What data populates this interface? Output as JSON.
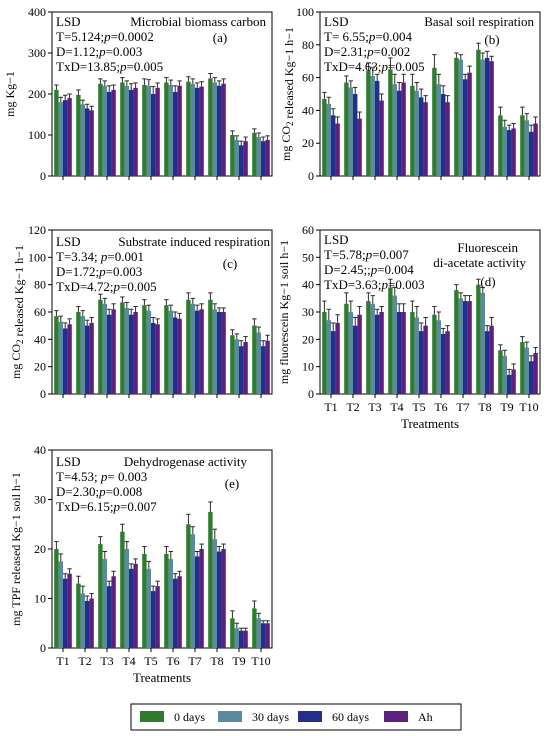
{
  "colors": {
    "0 days": "#2e7d2e",
    "30 days": "#5a8aa0",
    "60 days": "#232f8c",
    "Ah": "#5e1e82"
  },
  "legend": [
    "0 days",
    "30 days",
    "60 days",
    "Ah"
  ],
  "chart_data": [
    {
      "type": "bar",
      "panel": "a",
      "title": "Microbial biomass carbon",
      "panel_label": "(a)",
      "stats": [
        "LSD",
        "T=5.124;p=0.0002",
        "D=1.12;p=0.003",
        "TxD=13.85;p=0.005"
      ],
      "ylabel": "mg Kg−1",
      "xlabel": "",
      "ylim": [
        0,
        400
      ],
      "yticks": [
        0,
        100,
        200,
        300,
        400
      ],
      "categories": [
        "T1",
        "T2",
        "T3",
        "T4",
        "T5",
        "T6",
        "T7",
        "T8",
        "T9",
        "T10"
      ],
      "show_x_ticklabels": false,
      "series": [
        {
          "name": "0 days",
          "values": [
            210,
            198,
            225,
            228,
            222,
            228,
            230,
            238,
            100,
            105
          ],
          "errors": [
            12,
            12,
            12,
            12,
            15,
            12,
            12,
            12,
            10,
            10
          ]
        },
        {
          "name": "30 days",
          "values": [
            180,
            175,
            220,
            220,
            220,
            222,
            225,
            228,
            88,
            95
          ],
          "errors": [
            12,
            10,
            12,
            12,
            15,
            12,
            12,
            12,
            10,
            10
          ]
        },
        {
          "name": "60 days",
          "values": [
            185,
            165,
            205,
            210,
            200,
            205,
            215,
            220,
            75,
            85
          ],
          "errors": [
            12,
            10,
            15,
            15,
            18,
            15,
            12,
            12,
            10,
            10
          ]
        },
        {
          "name": "Ah",
          "values": [
            190,
            160,
            210,
            215,
            215,
            220,
            218,
            225,
            85,
            88
          ],
          "errors": [
            10,
            10,
            12,
            12,
            12,
            12,
            12,
            12,
            10,
            10
          ]
        }
      ]
    },
    {
      "type": "bar",
      "panel": "b",
      "title": "Basal soil respiration",
      "panel_label": "(b)",
      "stats": [
        "LSD",
        "T= 6.55;p=0.004",
        "D=2.31;p=0.002",
        "TxD=4.63;p=0.005"
      ],
      "ylabel": "mg CO2 released Kg−1 h−1",
      "xlabel": "",
      "ylim": [
        0,
        100
      ],
      "yticks": [
        0,
        20,
        40,
        60,
        80,
        100
      ],
      "categories": [
        "T1",
        "T2",
        "T3",
        "T4",
        "T5",
        "T6",
        "T7",
        "T8",
        "T9",
        "T10"
      ],
      "show_x_ticklabels": false,
      "series": [
        {
          "name": "0 days",
          "values": [
            47,
            57,
            64,
            65,
            55,
            66,
            72,
            77,
            37,
            37
          ],
          "errors": [
            4,
            4,
            5,
            7,
            7,
            8,
            3,
            4,
            5,
            5
          ]
        },
        {
          "name": "30 days",
          "values": [
            44,
            54,
            61,
            56,
            52,
            56,
            71,
            71,
            30,
            34
          ],
          "errors": [
            4,
            4,
            5,
            6,
            5,
            6,
            3,
            4,
            4,
            4
          ]
        },
        {
          "name": "60 days",
          "values": [
            37,
            50,
            58,
            52,
            48,
            50,
            59,
            72,
            28,
            27
          ],
          "errors": [
            4,
            4,
            4,
            5,
            5,
            5,
            3,
            4,
            3,
            4
          ]
        },
        {
          "name": "Ah",
          "values": [
            32,
            35,
            46,
            57,
            45,
            45,
            63,
            70,
            29,
            32
          ],
          "errors": [
            4,
            4,
            4,
            5,
            4,
            4,
            4,
            3,
            3,
            4
          ]
        }
      ]
    },
    {
      "type": "bar",
      "panel": "c",
      "title": "Substrate induced respiration",
      "panel_label": "(c)",
      "stats": [
        "LSD",
        "T=3.34; p=0.001",
        "D=1.72;p=0.003",
        "TxD=4.72;p=0.005"
      ],
      "ylabel": "mg CO2 released Kg−1 h−1",
      "xlabel": "",
      "ylim": [
        0,
        120
      ],
      "yticks": [
        0,
        20,
        40,
        60,
        80,
        100,
        120
      ],
      "categories": [
        "T1",
        "T2",
        "T3",
        "T4",
        "T5",
        "T6",
        "T7",
        "T8",
        "T9",
        "T10"
      ],
      "show_x_ticklabels": false,
      "series": [
        {
          "name": "0 days",
          "values": [
            57,
            60,
            69,
            67,
            65,
            65,
            69,
            69,
            43,
            50
          ],
          "errors": [
            4,
            4,
            4,
            4,
            4,
            4,
            5,
            5,
            4,
            5
          ]
        },
        {
          "name": "30 days",
          "values": [
            53,
            57,
            66,
            63,
            61,
            61,
            66,
            62,
            40,
            45
          ],
          "errors": [
            4,
            4,
            4,
            4,
            4,
            4,
            4,
            4,
            4,
            4
          ]
        },
        {
          "name": "60 days",
          "values": [
            48,
            50,
            58,
            58,
            52,
            56,
            61,
            60,
            35,
            35
          ],
          "errors": [
            4,
            4,
            4,
            4,
            4,
            4,
            4,
            3,
            4,
            4
          ]
        },
        {
          "name": "Ah",
          "values": [
            51,
            52,
            62,
            60,
            51,
            55,
            62,
            60,
            38,
            39
          ],
          "errors": [
            4,
            4,
            4,
            4,
            4,
            4,
            4,
            3,
            4,
            4
          ]
        }
      ]
    },
    {
      "type": "bar",
      "panel": "d",
      "title": "Fluorescein",
      "title2": "di-acetate activity",
      "panel_label": "(d)",
      "stats": [
        "LSD",
        "T=5.78;p=0.007",
        "D=2.45;;p=0.004",
        "TxD=3.63;p=0.003"
      ],
      "ylabel": "mg fluorescein Kg−1 soil h−1",
      "xlabel": "Treatments",
      "ylim": [
        0,
        60
      ],
      "yticks": [
        0,
        10,
        20,
        30,
        40,
        50,
        60
      ],
      "categories": [
        "T1",
        "T2",
        "T3",
        "T4",
        "T5",
        "T6",
        "T7",
        "T8",
        "T9",
        "T10"
      ],
      "show_x_ticklabels": true,
      "series": [
        {
          "name": "0 days",
          "values": [
            30,
            33,
            34,
            39,
            30,
            29,
            38,
            40,
            16,
            19
          ],
          "errors": [
            4,
            4,
            3,
            3,
            4,
            3,
            2,
            2,
            2,
            2
          ]
        },
        {
          "name": "30 days",
          "values": [
            27,
            30,
            33,
            36,
            28,
            27,
            35,
            37,
            14,
            17
          ],
          "errors": [
            4,
            4,
            3,
            3,
            4,
            3,
            2,
            2,
            2,
            2
          ]
        },
        {
          "name": "60 days",
          "values": [
            23,
            25,
            29,
            30,
            23,
            22,
            34,
            23,
            7,
            12
          ],
          "errors": [
            3,
            3,
            2,
            3,
            3,
            2,
            2,
            2,
            2,
            2
          ]
        },
        {
          "name": "Ah",
          "values": [
            26,
            29,
            30,
            30,
            25,
            23,
            34,
            25,
            9,
            15
          ],
          "errors": [
            3,
            3,
            2,
            3,
            3,
            2,
            2,
            3,
            2,
            2
          ]
        }
      ]
    },
    {
      "type": "bar",
      "panel": "e",
      "title": "Dehydrogenase activity",
      "panel_label": "(e)",
      "stats": [
        "LSD",
        "T=4.53; p= 0.003",
        "D=2.30;p=0.008",
        "TxD=6.15;p=0.007"
      ],
      "ylabel": "mg TPF released Kg−1 soil h−1",
      "xlabel": "Treatments",
      "ylim": [
        0,
        40
      ],
      "yticks": [
        0,
        10,
        20,
        30,
        40
      ],
      "categories": [
        "T1",
        "T2",
        "T3",
        "T4",
        "T5",
        "T6",
        "T7",
        "T8",
        "T9",
        "T10"
      ],
      "show_x_ticklabels": true,
      "series": [
        {
          "name": "0 days",
          "values": [
            20,
            13,
            21,
            23.5,
            19,
            19,
            25,
            27.5,
            6,
            8
          ],
          "errors": [
            1.5,
            1.5,
            1.5,
            1.5,
            1.5,
            1.5,
            2,
            2,
            1.5,
            1.5
          ]
        },
        {
          "name": "30 days",
          "values": [
            17.5,
            11,
            18,
            20,
            16,
            18,
            23,
            22,
            4,
            6
          ],
          "errors": [
            1.5,
            1.5,
            1.5,
            1.5,
            1.5,
            1.5,
            1.5,
            2,
            1,
            1
          ]
        },
        {
          "name": "60 days",
          "values": [
            14,
            9.5,
            12.5,
            16,
            11.5,
            14,
            18.5,
            19.5,
            3.5,
            5
          ],
          "errors": [
            1,
            1,
            1,
            1,
            1,
            1,
            1,
            1,
            0.5,
            0.5
          ]
        },
        {
          "name": "Ah",
          "values": [
            15,
            10,
            14.5,
            17,
            12.5,
            14.5,
            20,
            20,
            3.5,
            5
          ],
          "errors": [
            1,
            1,
            1,
            1,
            1,
            1,
            1,
            1,
            0.5,
            0.5
          ]
        }
      ]
    }
  ]
}
